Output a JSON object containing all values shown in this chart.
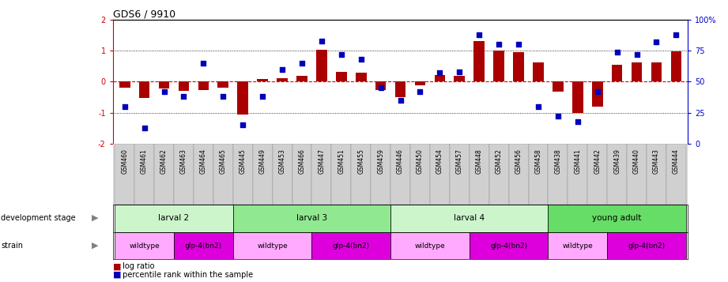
{
  "title": "GDS6 / 9910",
  "samples": [
    "GSM460",
    "GSM461",
    "GSM462",
    "GSM463",
    "GSM464",
    "GSM465",
    "GSM445",
    "GSM449",
    "GSM453",
    "GSM466",
    "GSM447",
    "GSM451",
    "GSM455",
    "GSM459",
    "GSM446",
    "GSM450",
    "GSM454",
    "GSM457",
    "GSM448",
    "GSM452",
    "GSM456",
    "GSM458",
    "GSM438",
    "GSM441",
    "GSM442",
    "GSM439",
    "GSM440",
    "GSM443",
    "GSM444"
  ],
  "log_ratio": [
    -0.18,
    -0.52,
    -0.22,
    -0.3,
    -0.28,
    -0.18,
    -1.05,
    0.08,
    0.12,
    0.18,
    1.02,
    0.32,
    0.28,
    -0.28,
    -0.5,
    -0.12,
    0.22,
    0.18,
    1.3,
    1.0,
    0.95,
    0.62,
    -0.32,
    -1.02,
    -0.8,
    0.55,
    0.62,
    0.62,
    0.98
  ],
  "percentile": [
    30,
    13,
    42,
    38,
    65,
    38,
    15,
    38,
    60,
    65,
    83,
    72,
    68,
    45,
    35,
    42,
    57,
    58,
    88,
    80,
    80,
    30,
    22,
    18,
    42,
    74,
    72,
    82,
    88
  ],
  "dev_stage_labels": [
    "larval 2",
    "larval 3",
    "larval 4",
    "young adult"
  ],
  "dev_stage_starts": [
    0,
    6,
    14,
    22
  ],
  "dev_stage_ends": [
    6,
    14,
    22,
    29
  ],
  "dev_stage_colors": [
    "#ccf5cc",
    "#90e890",
    "#ccf5cc",
    "#66dd66"
  ],
  "strain_labels": [
    "wildtype",
    "glp-4(bn2)",
    "wildtype",
    "glp-4(bn2)",
    "wildtype",
    "glp-4(bn2)",
    "wildtype",
    "glp-4(bn2)"
  ],
  "strain_starts": [
    0,
    3,
    6,
    10,
    14,
    18,
    22,
    25
  ],
  "strain_ends": [
    3,
    6,
    10,
    14,
    18,
    22,
    25,
    29
  ],
  "strain_wt_color": "#ffaaff",
  "strain_mut_color": "#dd00dd",
  "ylim_left": [
    -2,
    2
  ],
  "ylim_right": [
    0,
    100
  ],
  "bar_color": "#aa0000",
  "dot_color": "#0000bb",
  "hline_color": "#dd0000",
  "axis_color_left": "#cc0000",
  "axis_color_right": "#0000cc"
}
